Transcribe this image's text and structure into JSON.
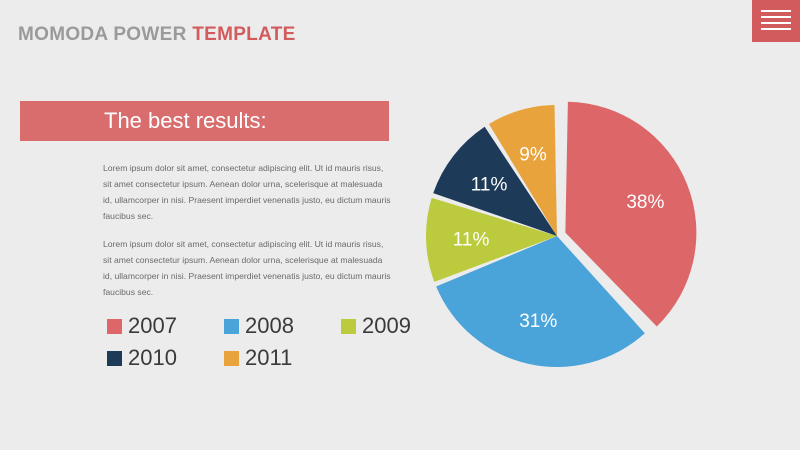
{
  "header": {
    "title_main": "MOMODA POWER",
    "title_accent": "TEMPLATE",
    "menu_icon": "hamburger-menu-icon"
  },
  "colors": {
    "accent": "#d25b5e",
    "banner": "#d96c6d",
    "background": "#ececec"
  },
  "banner": {
    "text": "The best results:"
  },
  "paragraphs": [
    "Lorem ipsum dolor sit amet, consectetur adipiscing elit. Ut id mauris risus, sit amet consectetur ipsum. Aenean dolor urna, scelerisque at malesuada id, ullamcorper in nisi. Praesent imperdiet venenatis justo, eu dictum mauris faucibus sec.",
    "Lorem ipsum dolor sit amet, consectetur adipiscing elit. Ut id mauris risus, sit amet consectetur ipsum. Aenean dolor urna, scelerisque at malesuada id, ullamcorper in nisi. Praesent imperdiet venenatis justo, eu dictum mauris faucibus sec."
  ],
  "chart_data": {
    "type": "pie",
    "title": "",
    "categories": [
      "2007",
      "2008",
      "2009",
      "2010",
      "2011"
    ],
    "values": [
      38,
      31,
      11,
      11,
      9
    ],
    "labels": [
      "38%",
      "31%",
      "11%",
      "11%",
      "9%"
    ],
    "colors": [
      "#dc6668",
      "#4aa3d9",
      "#bccb3d",
      "#1d3a58",
      "#e8a33d"
    ],
    "label_colors": [
      "#ffffff",
      "#ffffff",
      "#ffffff",
      "#ffffff",
      "#ffffff"
    ],
    "exploded": "2007",
    "legend_position": "left"
  }
}
